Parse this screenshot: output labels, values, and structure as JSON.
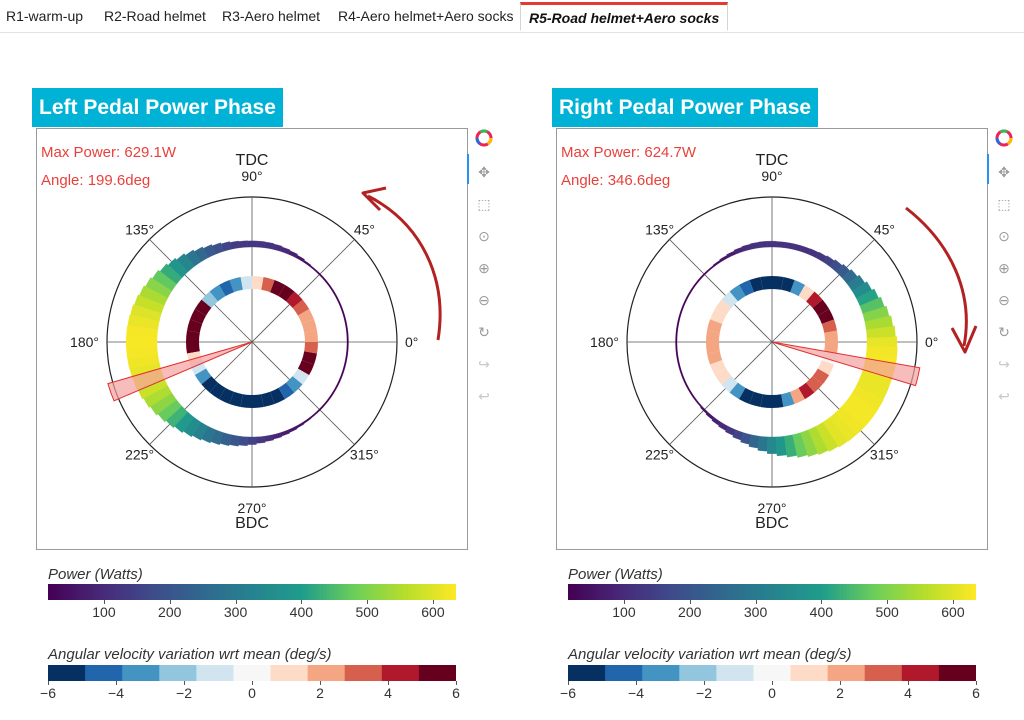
{
  "tabs": [
    {
      "label": "R1-warm-up",
      "active": false
    },
    {
      "label": "R2-Road helmet",
      "active": false
    },
    {
      "label": "R3-Aero helmet",
      "active": false
    },
    {
      "label": "R4-Aero helmet+Aero socks",
      "active": false
    },
    {
      "label": "R5-Road helmet+Aero socks",
      "active": true
    }
  ],
  "panels": [
    {
      "title": "Left Pedal Power Phase",
      "max_power": "Max Power: 629.1W",
      "angle": "Angle: 199.6deg",
      "peak_angle_deg": 199.6,
      "rotation_direction": "counterclockwise"
    },
    {
      "title": "Right Pedal Power Phase",
      "max_power": "Max Power: 624.7W",
      "angle": "Angle: 346.6deg",
      "peak_angle_deg": 346.6,
      "rotation_direction": "clockwise"
    }
  ],
  "polar_axis": {
    "angle_labels": [
      "0°",
      "45°",
      "90°",
      "135°",
      "180°",
      "225°",
      "270°",
      "315°"
    ],
    "top_label": "TDC",
    "bottom_label": "BDC"
  },
  "toolbar": {
    "tools": [
      "bokeh-logo-icon",
      "pan-icon",
      "box-zoom-icon",
      "wheel-zoom-icon",
      "zoom-in-icon",
      "zoom-out-icon",
      "reset-icon",
      "redo-icon",
      "undo-icon"
    ]
  },
  "colorbars": {
    "power": {
      "title": "Power (Watts)",
      "ticks": [
        "100",
        "200",
        "300",
        "400",
        "500",
        "600"
      ],
      "range": [
        15,
        635
      ]
    },
    "angular": {
      "title": "Angular velocity variation wrt mean (deg/s)",
      "ticks": [
        "−6",
        "−4",
        "−2",
        "0",
        "2",
        "4",
        "6"
      ],
      "range": [
        -6,
        6
      ]
    }
  },
  "colors": {
    "accent": "#00b3d6",
    "info_text": "#e8413c",
    "active_tab": "#e53935",
    "arrow": "#b22222",
    "peak_wedge": "#f4a0a0",
    "power_palette": [
      "#440154",
      "#482777",
      "#3f4a8a",
      "#31678e",
      "#26838f",
      "#1f9d8a",
      "#6cce5a",
      "#b6de2b",
      "#fee825"
    ],
    "rdbu_palette": [
      "#053061",
      "#2166ac",
      "#4393c3",
      "#92c5de",
      "#d1e5f0",
      "#f7f7f7",
      "#fddbc7",
      "#f4a582",
      "#d6604d",
      "#b2182b",
      "#67001f"
    ]
  },
  "chart_data": [
    {
      "type": "polar-bar",
      "title": "Left Pedal Power Phase",
      "series": [
        {
          "name": "Power (Watts)",
          "angle_step_deg": 5,
          "angles_deg": [
            0,
            5,
            10,
            15,
            20,
            25,
            30,
            35,
            40,
            45,
            50,
            55,
            60,
            65,
            70,
            75,
            80,
            85,
            90,
            95,
            100,
            105,
            110,
            115,
            120,
            125,
            130,
            135,
            140,
            145,
            150,
            155,
            160,
            165,
            170,
            175,
            180,
            185,
            190,
            195,
            200,
            205,
            210,
            215,
            220,
            225,
            230,
            235,
            240,
            245,
            250,
            255,
            260,
            265,
            270,
            275,
            280,
            285,
            290,
            295,
            300,
            305,
            310,
            315,
            320,
            325,
            330,
            335,
            340,
            345,
            350,
            355
          ],
          "values": [
            15,
            15,
            15,
            15,
            15,
            15,
            15,
            15,
            15,
            15,
            25,
            40,
            60,
            80,
            95,
            110,
            120,
            125,
            125,
            130,
            140,
            160,
            185,
            215,
            250,
            290,
            335,
            380,
            425,
            470,
            510,
            545,
            575,
            600,
            615,
            625,
            629,
            625,
            620,
            610,
            600,
            580,
            550,
            515,
            475,
            435,
            395,
            355,
            320,
            290,
            260,
            230,
            205,
            180,
            155,
            130,
            110,
            90,
            75,
            60,
            45,
            35,
            25,
            20,
            15,
            15,
            15,
            15,
            15,
            15,
            15,
            15
          ]
        },
        {
          "name": "Angular velocity variation wrt mean (deg/s)",
          "angle_step_deg": 10,
          "angles_deg": [
            0,
            10,
            20,
            30,
            40,
            50,
            60,
            70,
            80,
            90,
            100,
            110,
            120,
            130,
            140,
            150,
            160,
            170,
            180,
            190,
            200,
            210,
            220,
            230,
            240,
            250,
            260,
            270,
            280,
            290,
            300,
            310,
            320,
            330,
            340,
            350
          ],
          "values": [
            2,
            2,
            2,
            3,
            4,
            5,
            5,
            3,
            1,
            -1,
            -3,
            -4,
            -3,
            -2,
            5,
            5,
            6,
            6,
            6,
            1,
            -1,
            -3,
            -5,
            -5,
            -5,
            -5,
            -6,
            -6,
            -6,
            -5,
            -4,
            -3,
            -1,
            6,
            5,
            3
          ]
        }
      ],
      "peak": {
        "angle_deg": 199.6,
        "power_w": 629.1
      },
      "rlim": [
        0,
        640
      ]
    },
    {
      "type": "polar-bar",
      "title": "Right Pedal Power Phase",
      "series": [
        {
          "name": "Power (Watts)",
          "angle_step_deg": 5,
          "angles_deg": [
            0,
            5,
            10,
            15,
            20,
            25,
            30,
            35,
            40,
            45,
            50,
            55,
            60,
            65,
            70,
            75,
            80,
            85,
            90,
            95,
            100,
            105,
            110,
            115,
            120,
            125,
            130,
            135,
            140,
            145,
            150,
            155,
            160,
            165,
            170,
            175,
            180,
            185,
            190,
            195,
            200,
            205,
            210,
            215,
            220,
            225,
            230,
            235,
            240,
            245,
            250,
            255,
            260,
            265,
            270,
            275,
            280,
            285,
            290,
            295,
            300,
            305,
            310,
            315,
            320,
            325,
            330,
            335,
            340,
            345,
            350,
            355
          ],
          "values": [
            610,
            580,
            545,
            505,
            460,
            410,
            355,
            305,
            255,
            215,
            180,
            150,
            130,
            120,
            115,
            115,
            115,
            115,
            120,
            120,
            115,
            105,
            90,
            70,
            55,
            40,
            30,
            20,
            15,
            15,
            15,
            15,
            15,
            15,
            15,
            15,
            15,
            15,
            15,
            15,
            15,
            15,
            15,
            20,
            30,
            45,
            60,
            80,
            100,
            125,
            160,
            200,
            245,
            290,
            340,
            385,
            430,
            475,
            515,
            550,
            580,
            605,
            615,
            620,
            624,
            624,
            620,
            615,
            615,
            620,
            625,
            622
          ],
          "_note_removed": null
        },
        {
          "name": "Angular velocity variation wrt mean (deg/s)",
          "angle_step_deg": 10,
          "angles_deg": [
            0,
            10,
            20,
            30,
            40,
            50,
            60,
            70,
            80,
            90,
            100,
            110,
            120,
            130,
            140,
            150,
            160,
            170,
            180,
            190,
            200,
            210,
            220,
            230,
            240,
            250,
            260,
            270,
            280,
            290,
            300,
            310,
            320,
            330,
            340,
            350
          ],
          "values": [
            2,
            3,
            5,
            6,
            4,
            1,
            -3,
            -5,
            -6,
            -6,
            -5,
            -4,
            -3,
            -1,
            1,
            1,
            2,
            2,
            2,
            2,
            1,
            1,
            -1,
            -3,
            -5,
            -6,
            -6,
            -5,
            -3,
            2,
            4,
            3,
            3,
            1,
            0,
            2
          ]
        }
      ],
      "peak": {
        "angle_deg": 346.6,
        "power_w": 624.7
      },
      "rlim": [
        0,
        640
      ]
    }
  ]
}
